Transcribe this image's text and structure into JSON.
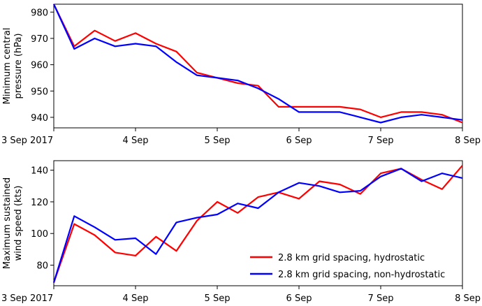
{
  "chart_data": [
    {
      "type": "line",
      "ylabel_lines": [
        "Minimum central",
        "pressure (hPa)"
      ],
      "xlim": [
        0,
        5
      ],
      "ylim": [
        936,
        983
      ],
      "x_ticks": [
        {
          "value": 0,
          "label": "3 Sep 2017"
        },
        {
          "value": 1,
          "label": "4 Sep"
        },
        {
          "value": 2,
          "label": "5 Sep"
        },
        {
          "value": 3,
          "label": "6 Sep"
        },
        {
          "value": 4,
          "label": "7 Sep"
        },
        {
          "value": 5,
          "label": "8 Sep"
        }
      ],
      "y_ticks": [
        940,
        950,
        960,
        970,
        980
      ],
      "legend": "none",
      "grid": false,
      "series": [
        {
          "name": "2.8 km grid spacing, hydrostatic",
          "color": "#ff0000",
          "x": [
            0,
            0.25,
            0.5,
            0.75,
            1.0,
            1.25,
            1.5,
            1.75,
            2.0,
            2.25,
            2.5,
            2.75,
            3.0,
            3.25,
            3.5,
            3.75,
            4.0,
            4.25,
            4.5,
            4.75,
            5.0
          ],
          "y": [
            983,
            967,
            973,
            969,
            972,
            968,
            965,
            957,
            955,
            953,
            952,
            944,
            944,
            944,
            944,
            943,
            940,
            942,
            942,
            941,
            938
          ]
        },
        {
          "name": "2.8 km grid spacing, non-hydrostatic",
          "color": "#0000ff",
          "x": [
            0,
            0.25,
            0.5,
            0.75,
            1.0,
            1.25,
            1.5,
            1.75,
            2.0,
            2.25,
            2.5,
            2.75,
            3.0,
            3.25,
            3.5,
            3.75,
            4.0,
            4.25,
            4.5,
            4.75,
            5.0
          ],
          "y": [
            983,
            966,
            970,
            967,
            968,
            967,
            961,
            956,
            955,
            954,
            951,
            947,
            942,
            942,
            942,
            940,
            938,
            940,
            941,
            940,
            939
          ]
        }
      ]
    },
    {
      "type": "line",
      "ylabel_lines": [
        "Maximum sustained",
        "wind speed (kts)"
      ],
      "xlim": [
        0,
        5
      ],
      "ylim": [
        67,
        146
      ],
      "x_ticks": [
        {
          "value": 0,
          "label": "3 Sep 2017"
        },
        {
          "value": 1,
          "label": "4 Sep"
        },
        {
          "value": 2,
          "label": "5 Sep"
        },
        {
          "value": 3,
          "label": "6 Sep"
        },
        {
          "value": 4,
          "label": "7 Sep"
        },
        {
          "value": 5,
          "label": "8 Sep"
        }
      ],
      "y_ticks": [
        80,
        100,
        120,
        140
      ],
      "legend": "lower-right",
      "grid": false,
      "series": [
        {
          "name": "2.8 km grid spacing, hydrostatic",
          "color": "#ff0000",
          "x": [
            0,
            0.25,
            0.5,
            0.75,
            1.0,
            1.25,
            1.5,
            1.75,
            2.0,
            2.25,
            2.5,
            2.75,
            3.0,
            3.25,
            3.5,
            3.75,
            4.0,
            4.25,
            4.5,
            4.75,
            5.0
          ],
          "y": [
            69,
            106,
            99,
            88,
            86,
            98,
            89,
            108,
            120,
            113,
            123,
            126,
            122,
            133,
            131,
            125,
            138,
            141,
            134,
            128,
            143
          ]
        },
        {
          "name": "2.8 km grid spacing, non-hydrostatic",
          "color": "#0000ff",
          "x": [
            0,
            0.25,
            0.5,
            0.75,
            1.0,
            1.25,
            1.5,
            1.75,
            2.0,
            2.25,
            2.5,
            2.75,
            3.0,
            3.25,
            3.5,
            3.75,
            4.0,
            4.25,
            4.5,
            4.75,
            5.0
          ],
          "y": [
            69,
            111,
            104,
            96,
            97,
            87,
            107,
            110,
            112,
            119,
            116,
            126,
            132,
            130,
            126,
            127,
            136,
            141,
            133,
            138,
            135
          ]
        }
      ]
    }
  ]
}
